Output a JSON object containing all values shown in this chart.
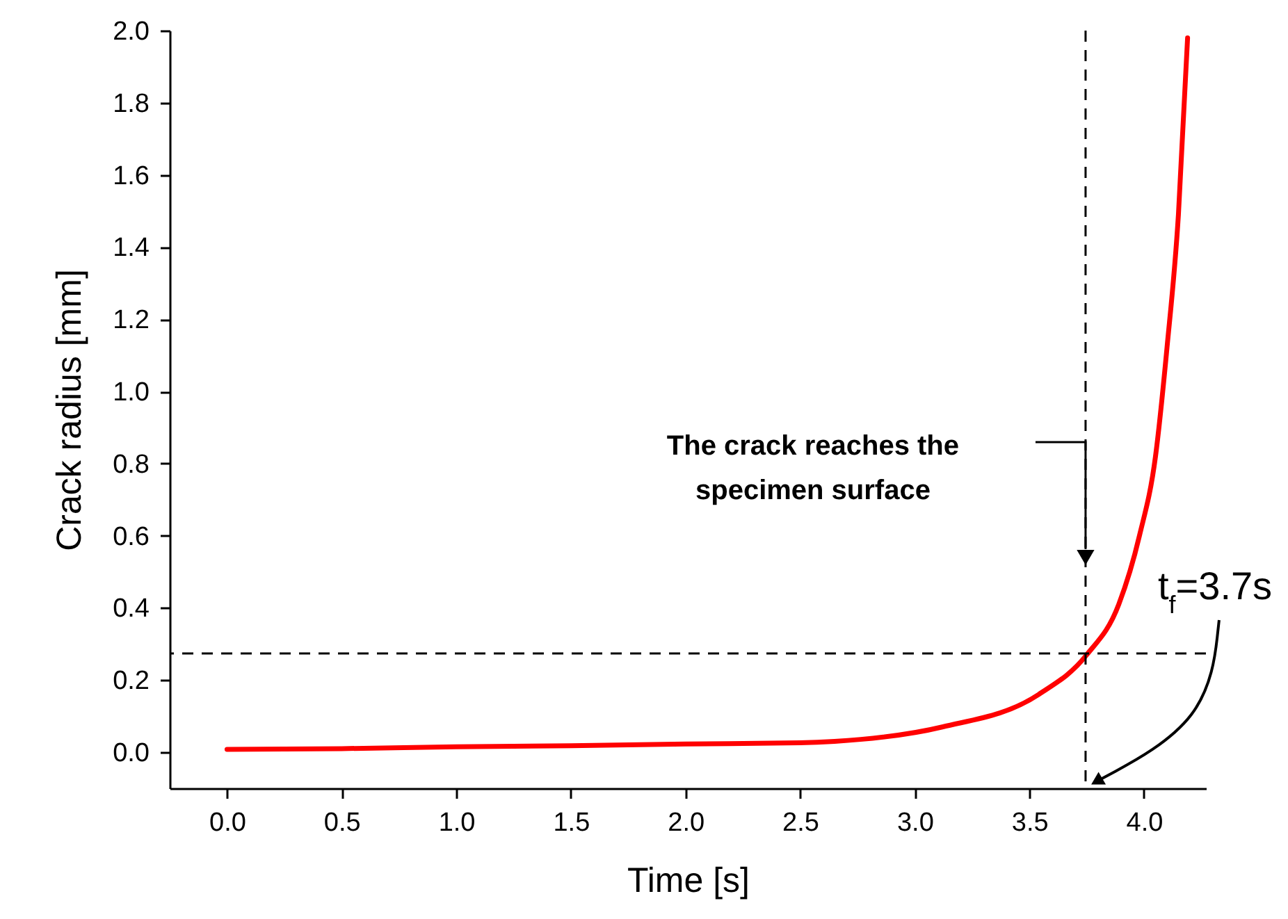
{
  "chart_data": {
    "type": "line",
    "xlabel": "Time [s]",
    "ylabel": "Crack radius [mm]",
    "x": [
      0,
      0.5,
      1.0,
      1.5,
      2.0,
      2.5,
      2.65,
      3.12,
      3.54,
      3.75,
      3.89,
      3.98,
      4.05,
      4.1,
      4.15,
      4.19
    ],
    "series": [
      {
        "color": "#ff0000",
        "values": [
          0.008,
          0.01,
          0.015,
          0.018,
          0.023,
          0.026,
          0.03,
          0.07,
          0.16,
          0.27,
          0.41,
          0.6,
          0.82,
          1.12,
          1.49,
          1.98
        ]
      }
    ],
    "xlim": [
      -0.25,
      4.27
    ],
    "ylim": [
      -0.1,
      2.0
    ],
    "xticks": [
      {
        "value": 0,
        "label": "0.0"
      },
      0.5,
      {
        "value": 1,
        "label": "1.0"
      },
      1.5,
      {
        "value": 2,
        "label": "2.0"
      },
      2.5,
      {
        "value": 3,
        "label": "3.0"
      },
      3.5,
      {
        "value": 4,
        "label": "4.0"
      }
    ],
    "yticks": [
      {
        "value": 0,
        "label": "0.0"
      },
      0.2,
      0.4,
      0.6,
      0.8,
      {
        "value": 1,
        "label": "1.0"
      },
      1.2,
      1.4,
      1.6,
      1.8,
      {
        "value": 2,
        "label": "2.0"
      }
    ],
    "ref_lines": [
      {
        "axis": "y",
        "value": 0.274,
        "line_style": "dashed"
      },
      {
        "axis": "x",
        "value": 3.745,
        "line_style": "dashed"
      }
    ],
    "annotations": [
      "The crack reaches the specimen surface",
      "t$_{f}$=3.7s"
    ],
    "grid": false,
    "marker": "none",
    "line_style": "solid"
  }
}
